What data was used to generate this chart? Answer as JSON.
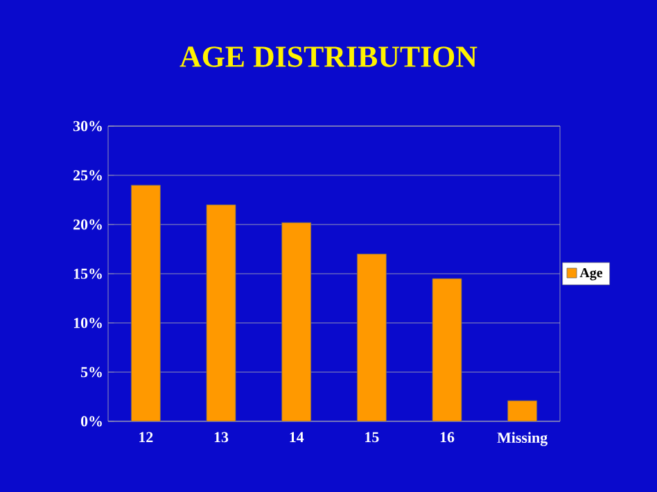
{
  "chart_data": {
    "type": "bar",
    "title": "AGE DISTRIBUTION",
    "categories": [
      "12",
      "13",
      "14",
      "15",
      "16",
      "Missing"
    ],
    "series": [
      {
        "name": "Age",
        "color": "#ff9900",
        "values": [
          24,
          22,
          20.2,
          17,
          14.5,
          2.1
        ]
      }
    ],
    "ylim": [
      0,
      30
    ],
    "yticks": [
      {
        "value": 0,
        "label": "0%"
      },
      {
        "value": 5,
        "label": "5%"
      },
      {
        "value": 10,
        "label": "10%"
      },
      {
        "value": 15,
        "label": "15%"
      },
      {
        "value": 20,
        "label": "20%"
      },
      {
        "value": 25,
        "label": "25%"
      },
      {
        "value": 30,
        "label": "30%"
      }
    ],
    "grid": "y",
    "legend": "right"
  }
}
